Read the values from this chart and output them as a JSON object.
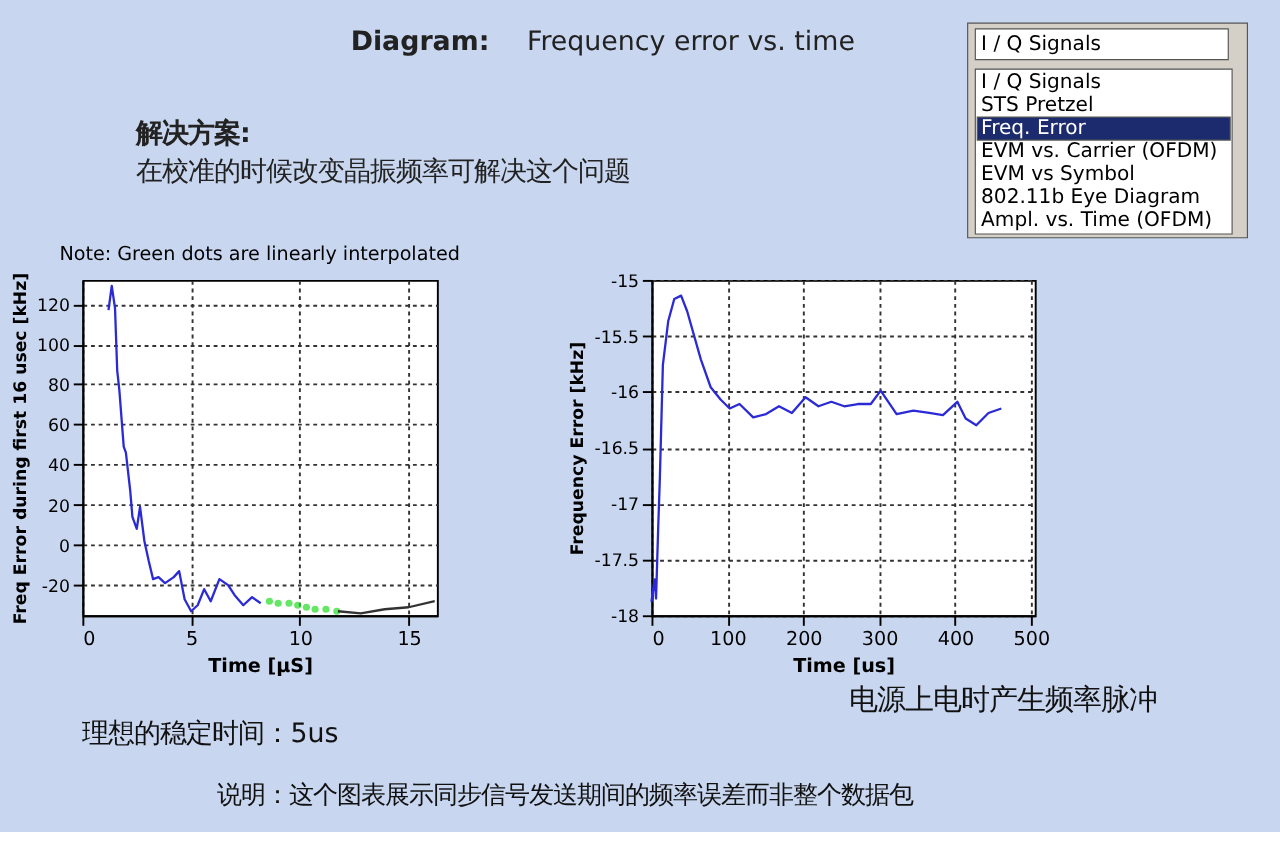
{
  "chart_data": [
    {
      "type": "line",
      "title": "Note: Green dots are linearly interpolated",
      "xlabel": "Time [µS]",
      "ylabel": "Freq Error during first 16 usec [kHz]",
      "xlim": [
        0,
        16.3
      ],
      "ylim": [
        -35,
        132
      ],
      "xticks": [
        0,
        5,
        10,
        15
      ],
      "yticks": [
        -20,
        0,
        20,
        40,
        60,
        80,
        100,
        120
      ],
      "grid": true,
      "series": [
        {
          "line_style": "solid",
          "color": "#2b2bd6",
          "x": [
            1.2,
            1.35,
            1.5,
            1.6,
            1.7,
            1.9,
            2.0,
            2.2,
            2.3,
            2.5,
            2.65,
            2.85,
            3.05,
            3.25,
            3.5,
            3.8,
            4.2,
            4.45,
            4.7,
            5.0,
            5.3,
            5.6,
            5.9,
            6.3,
            6.7,
            7.0,
            7.4,
            7.8,
            8.2
          ],
          "values": [
            117,
            129,
            118,
            87,
            77,
            49,
            46,
            27,
            14,
            8,
            19,
            2,
            -8,
            -17,
            -16,
            -19,
            -16,
            -13,
            -27,
            -33,
            -30,
            -22,
            -28,
            -17,
            -20,
            -25,
            -30,
            -26,
            -29
          ]
        },
        {
          "type": "scatter",
          "marker": "circle",
          "color": "#22dd22",
          "x": [
            8.6,
            9.0,
            9.5,
            9.9,
            10.3,
            10.7,
            11.2,
            11.7
          ],
          "values": [
            -28,
            -29,
            -29,
            -30,
            -31,
            -32,
            -32,
            -33
          ]
        },
        {
          "line_style": "solid",
          "color": "#333333",
          "x": [
            11.75,
            12.8,
            13.9,
            15,
            16.2
          ],
          "values": [
            -33,
            -34,
            -32,
            -31,
            -28
          ]
        }
      ],
      "annotations": [
        "Diagram:",
        "Frequency error vs. time",
        "解决方案:",
        "在校准的时候改变晶振频率可解决这个问题",
        "理想的稳定时间：5us",
        "说明：这个图表展示同步信号发送期间的频率误差而非整个数据包"
      ]
    },
    {
      "type": "line",
      "xlabel": "Time [us]",
      "ylabel": "Frequency Error [kHz]",
      "xlim": [
        0,
        505
      ],
      "ylim": [
        -18,
        -15
      ],
      "xticks": [
        0,
        100,
        200,
        300,
        400,
        500
      ],
      "yticks": [
        -18,
        -17.5,
        -17,
        -16.5,
        -16,
        -15.5,
        -15
      ],
      "grid": true,
      "series": [
        {
          "line_style": "solid",
          "color": "#2b2bd6",
          "x": [
            0,
            4,
            6,
            9,
            11,
            15,
            22,
            30,
            39,
            47,
            65,
            78,
            91,
            103,
            116,
            134,
            151,
            168,
            185,
            203,
            220,
            237,
            254,
            272,
            289,
            302,
            323,
            345,
            366,
            384,
            403,
            414,
            428,
            444,
            461
          ],
          "values": [
            -17.88,
            -17.68,
            -17.85,
            -17.18,
            -16.78,
            -15.76,
            -15.37,
            -15.17,
            -15.14,
            -15.28,
            -15.71,
            -15.96,
            -16.07,
            -16.15,
            -16.11,
            -16.23,
            -16.2,
            -16.13,
            -16.19,
            -16.05,
            -16.13,
            -16.09,
            -16.13,
            -16.11,
            -16.11,
            -15.99,
            -16.2,
            -16.17,
            -16.19,
            -16.21,
            -16.09,
            -16.24,
            -16.3,
            -16.19,
            -16.15
          ]
        }
      ],
      "annotations": [
        "I / Q Signals",
        "I / Q Signals",
        "STS Pretzel",
        "Freq. Error",
        "EVM vs. Carrier (OFDM)",
        "EVM vs Symbol",
        "802.11b Eye Diagram",
        "Ampl. vs. Time (OFDM)",
        "电源上电时产生频率脉冲"
      ]
    }
  ]
}
